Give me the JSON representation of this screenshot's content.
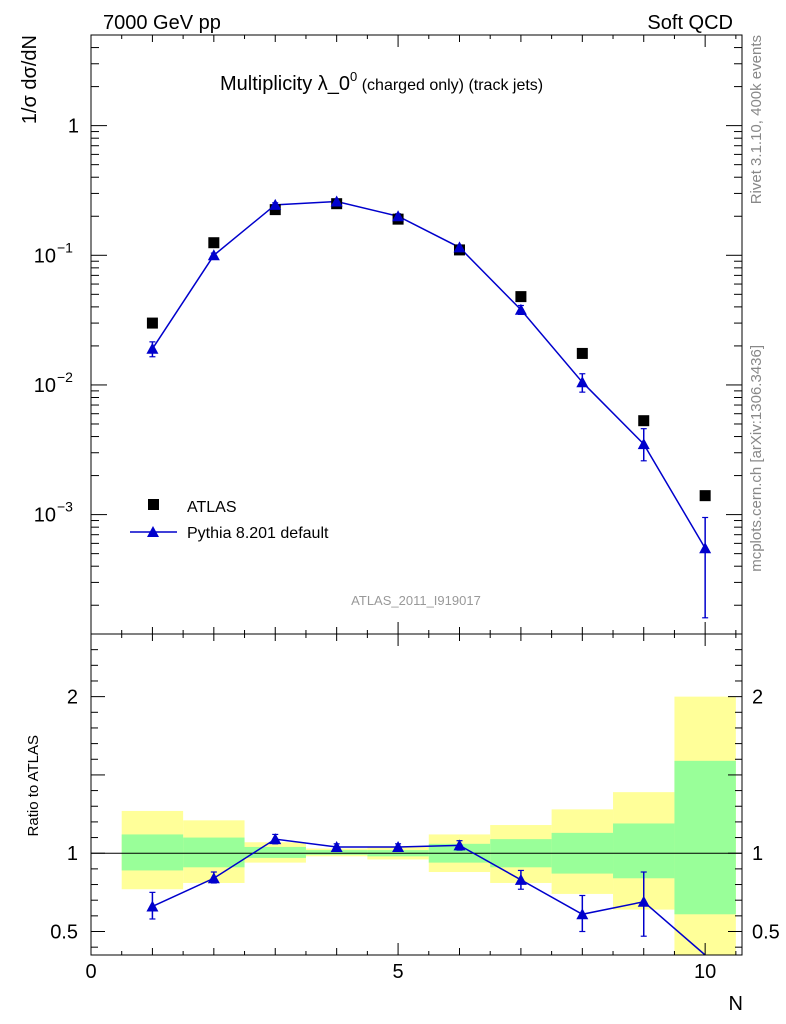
{
  "header": {
    "left": "7000 GeV pp",
    "right": "Soft QCD"
  },
  "side_labels": {
    "rivet": "Rivet 3.1.10,  400k events",
    "mcplots": "mcplots.cern.ch [arXiv:1306.3436]"
  },
  "main_plot": {
    "title_main": "Multiplicity λ_0",
    "title_sup": "0",
    "title_small": " (charged only) (track jets)",
    "ylabel": "1/σ dσ/dN",
    "analysis_id": "ATLAS_2011_I919017",
    "y_ticks": [
      {
        "value": 1,
        "base": "1",
        "exp": ""
      },
      {
        "value": 0.1,
        "base": "10",
        "exp": "−1"
      },
      {
        "value": 0.01,
        "base": "10",
        "exp": "−2"
      },
      {
        "value": 0.001,
        "base": "10",
        "exp": "−3"
      }
    ]
  },
  "ratio_plot": {
    "ylabel": "Ratio to ATLAS",
    "y_ticks": [
      {
        "value": 0.5,
        "label": "0.5"
      },
      {
        "value": 1,
        "label": "1"
      },
      {
        "value": 2,
        "label": "2"
      }
    ],
    "x_ticks": [
      {
        "value": 0,
        "label": "0"
      },
      {
        "value": 5,
        "label": "5"
      },
      {
        "value": 10,
        "label": "10"
      }
    ],
    "xlabel": "N"
  },
  "legend": {
    "atlas": "ATLAS",
    "pythia": "Pythia 8.201 default"
  },
  "colors": {
    "data": "#000000",
    "mc": "#0000cc",
    "band_inner": "#99ff99",
    "band_outer": "#ffff99"
  },
  "chart_data": {
    "type": "scatter",
    "xlim": [
      0,
      10.6
    ],
    "ylim": [
      0.00012,
      5
    ],
    "y_scale": "log",
    "ratio_ylim": [
      0.35,
      2.4
    ],
    "x": [
      1,
      2,
      3,
      4,
      5,
      6,
      7,
      8,
      9,
      10
    ],
    "series": [
      {
        "name": "ATLAS",
        "values": [
          0.03,
          0.125,
          0.225,
          0.25,
          0.19,
          0.11,
          0.048,
          0.0175,
          0.0053,
          0.0014
        ]
      },
      {
        "name": "Pythia 8.201 default",
        "values": [
          0.019,
          0.1,
          0.245,
          0.26,
          0.2,
          0.115,
          0.038,
          0.0105,
          0.0035,
          0.00055
        ],
        "err_low": [
          0.0165,
          0.096,
          0.236,
          0.25,
          0.191,
          0.11,
          0.035,
          0.0088,
          0.0026,
          0.00016
        ],
        "err_high": [
          0.0215,
          0.104,
          0.254,
          0.27,
          0.209,
          0.12,
          0.041,
          0.0122,
          0.0046,
          0.00095
        ]
      }
    ],
    "ratio": {
      "values": [
        0.66,
        0.84,
        1.09,
        1.04,
        1.04,
        1.05,
        0.83,
        0.61,
        0.69,
        0.3
      ],
      "err_low": [
        0.58,
        0.81,
        1.06,
        1.02,
        1.02,
        1.02,
        0.77,
        0.5,
        0.47,
        0.3
      ],
      "err_high": [
        0.75,
        0.88,
        1.12,
        1.06,
        1.06,
        1.08,
        0.89,
        0.73,
        0.88,
        0.3
      ],
      "band_inner": [
        {
          "x0": 0.5,
          "x1": 1.5,
          "lo": 0.89,
          "hi": 1.12
        },
        {
          "x0": 1.5,
          "x1": 2.5,
          "lo": 0.91,
          "hi": 1.1
        },
        {
          "x0": 2.5,
          "x1": 3.5,
          "lo": 0.97,
          "hi": 1.04
        },
        {
          "x0": 3.5,
          "x1": 4.5,
          "lo": 0.99,
          "hi": 1.02
        },
        {
          "x0": 4.5,
          "x1": 5.5,
          "lo": 0.98,
          "hi": 1.02
        },
        {
          "x0": 5.5,
          "x1": 6.5,
          "lo": 0.94,
          "hi": 1.06
        },
        {
          "x0": 6.5,
          "x1": 7.5,
          "lo": 0.91,
          "hi": 1.09
        },
        {
          "x0": 7.5,
          "x1": 8.5,
          "lo": 0.87,
          "hi": 1.13
        },
        {
          "x0": 8.5,
          "x1": 9.5,
          "lo": 0.84,
          "hi": 1.19
        },
        {
          "x0": 9.5,
          "x1": 10.5,
          "lo": 0.61,
          "hi": 1.59
        }
      ],
      "band_outer": [
        {
          "x0": 0.5,
          "x1": 1.5,
          "lo": 0.77,
          "hi": 1.27
        },
        {
          "x0": 1.5,
          "x1": 2.5,
          "lo": 0.81,
          "hi": 1.21
        },
        {
          "x0": 2.5,
          "x1": 3.5,
          "lo": 0.94,
          "hi": 1.07
        },
        {
          "x0": 3.5,
          "x1": 4.5,
          "lo": 0.98,
          "hi": 1.03
        },
        {
          "x0": 4.5,
          "x1": 5.5,
          "lo": 0.96,
          "hi": 1.04
        },
        {
          "x0": 5.5,
          "x1": 6.5,
          "lo": 0.88,
          "hi": 1.12
        },
        {
          "x0": 6.5,
          "x1": 7.5,
          "lo": 0.81,
          "hi": 1.18
        },
        {
          "x0": 7.5,
          "x1": 8.5,
          "lo": 0.74,
          "hi": 1.28
        },
        {
          "x0": 8.5,
          "x1": 9.5,
          "lo": 0.64,
          "hi": 1.39
        },
        {
          "x0": 9.5,
          "x1": 10.5,
          "lo": 0.35,
          "hi": 2.0
        }
      ]
    }
  }
}
